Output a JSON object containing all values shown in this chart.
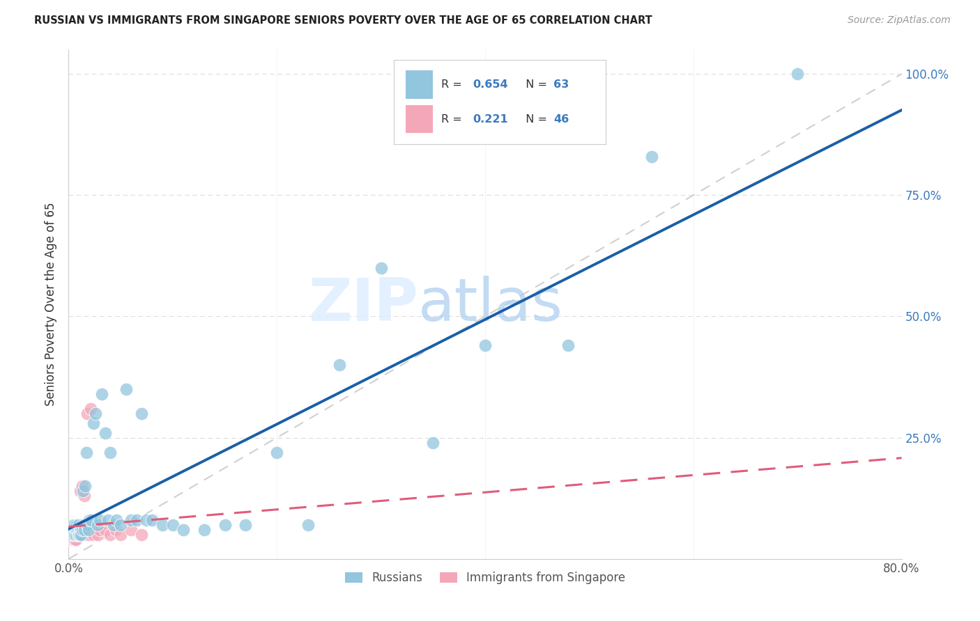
{
  "title": "RUSSIAN VS IMMIGRANTS FROM SINGAPORE SENIORS POVERTY OVER THE AGE OF 65 CORRELATION CHART",
  "source": "Source: ZipAtlas.com",
  "ylabel": "Seniors Poverty Over the Age of 65",
  "xlim": [
    0.0,
    0.8
  ],
  "ylim": [
    0.0,
    1.05
  ],
  "watermark_zip": "ZIP",
  "watermark_atlas": "atlas",
  "color_blue": "#92c5de",
  "color_pink": "#f4a7b9",
  "color_blue_line": "#1a5fa8",
  "color_pink_line": "#e05c7a",
  "color_diag": "#d0d0d0",
  "russians_x": [
    0.002,
    0.003,
    0.004,
    0.004,
    0.005,
    0.005,
    0.006,
    0.006,
    0.007,
    0.007,
    0.008,
    0.008,
    0.009,
    0.009,
    0.01,
    0.01,
    0.011,
    0.011,
    0.012,
    0.012,
    0.013,
    0.013,
    0.014,
    0.015,
    0.015,
    0.016,
    0.017,
    0.018,
    0.019,
    0.02,
    0.022,
    0.024,
    0.026,
    0.028,
    0.03,
    0.032,
    0.035,
    0.038,
    0.04,
    0.043,
    0.046,
    0.05,
    0.055,
    0.06,
    0.065,
    0.07,
    0.075,
    0.08,
    0.09,
    0.1,
    0.11,
    0.13,
    0.15,
    0.17,
    0.2,
    0.23,
    0.26,
    0.3,
    0.35,
    0.4,
    0.48,
    0.56,
    0.7
  ],
  "russians_y": [
    0.06,
    0.05,
    0.06,
    0.07,
    0.05,
    0.06,
    0.05,
    0.07,
    0.06,
    0.05,
    0.06,
    0.07,
    0.05,
    0.06,
    0.05,
    0.07,
    0.06,
    0.05,
    0.06,
    0.05,
    0.07,
    0.06,
    0.14,
    0.07,
    0.06,
    0.15,
    0.22,
    0.07,
    0.06,
    0.08,
    0.08,
    0.28,
    0.3,
    0.07,
    0.08,
    0.34,
    0.26,
    0.08,
    0.22,
    0.07,
    0.08,
    0.07,
    0.35,
    0.08,
    0.08,
    0.3,
    0.08,
    0.08,
    0.07,
    0.07,
    0.06,
    0.06,
    0.07,
    0.07,
    0.22,
    0.07,
    0.4,
    0.6,
    0.24,
    0.44,
    0.44,
    0.83,
    1.0
  ],
  "singapore_x": [
    0.001,
    0.002,
    0.002,
    0.003,
    0.003,
    0.003,
    0.004,
    0.004,
    0.005,
    0.005,
    0.005,
    0.006,
    0.006,
    0.006,
    0.007,
    0.007,
    0.007,
    0.008,
    0.008,
    0.009,
    0.009,
    0.01,
    0.01,
    0.011,
    0.012,
    0.013,
    0.013,
    0.014,
    0.015,
    0.016,
    0.017,
    0.018,
    0.019,
    0.02,
    0.021,
    0.022,
    0.024,
    0.026,
    0.028,
    0.03,
    0.035,
    0.04,
    0.045,
    0.05,
    0.06,
    0.07
  ],
  "singapore_y": [
    0.05,
    0.04,
    0.05,
    0.04,
    0.05,
    0.06,
    0.04,
    0.05,
    0.04,
    0.05,
    0.06,
    0.04,
    0.05,
    0.06,
    0.05,
    0.04,
    0.06,
    0.05,
    0.06,
    0.05,
    0.06,
    0.05,
    0.06,
    0.14,
    0.06,
    0.05,
    0.15,
    0.06,
    0.13,
    0.06,
    0.05,
    0.3,
    0.06,
    0.05,
    0.31,
    0.06,
    0.05,
    0.06,
    0.05,
    0.06,
    0.06,
    0.05,
    0.06,
    0.05,
    0.06,
    0.05
  ],
  "r_russian": "0.654",
  "n_russian": "63",
  "r_singapore": "0.221",
  "n_singapore": "46"
}
